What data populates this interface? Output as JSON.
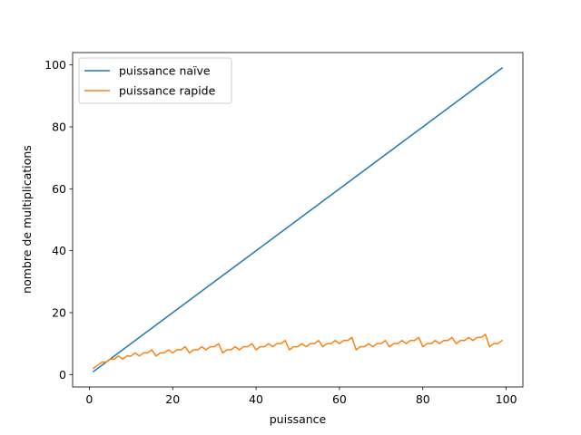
{
  "chart_data": {
    "type": "line",
    "title": "",
    "xlabel": "puissance",
    "ylabel": "nombre de multiplications",
    "xlim": [
      -4,
      104
    ],
    "ylim": [
      -4,
      104
    ],
    "x_ticks": [
      0,
      20,
      40,
      60,
      80,
      100
    ],
    "y_ticks": [
      0,
      20,
      40,
      60,
      80,
      100
    ],
    "grid": false,
    "legend_position": "top-left",
    "series": [
      {
        "name": "puissance naïve",
        "color": "#1f77b4",
        "x": [
          1,
          99
        ],
        "y": [
          1,
          99
        ]
      },
      {
        "name": "puissance rapide",
        "color": "#ff7f0e",
        "x": [
          1,
          2,
          3,
          4,
          5,
          6,
          7,
          8,
          9,
          10,
          11,
          12,
          13,
          14,
          15,
          16,
          17,
          18,
          19,
          20,
          21,
          22,
          23,
          24,
          25,
          26,
          27,
          28,
          29,
          30,
          31,
          32,
          33,
          34,
          35,
          36,
          37,
          38,
          39,
          40,
          41,
          42,
          43,
          44,
          45,
          46,
          47,
          48,
          49,
          50,
          51,
          52,
          53,
          54,
          55,
          56,
          57,
          58,
          59,
          60,
          61,
          62,
          63,
          64,
          65,
          66,
          67,
          68,
          69,
          70,
          71,
          72,
          73,
          74,
          75,
          76,
          77,
          78,
          79,
          80,
          81,
          82,
          83,
          84,
          85,
          86,
          87,
          88,
          89,
          90,
          91,
          92,
          93,
          94,
          95,
          96,
          97,
          98,
          99
        ],
        "y": [
          2,
          3,
          4,
          4,
          5,
          5,
          6,
          5,
          6,
          6,
          7,
          6,
          7,
          7,
          8,
          6,
          7,
          7,
          8,
          7,
          8,
          8,
          9,
          7,
          8,
          8,
          9,
          8,
          9,
          9,
          10,
          7,
          8,
          8,
          9,
          8,
          9,
          9,
          10,
          8,
          9,
          9,
          10,
          9,
          10,
          10,
          11,
          8,
          9,
          9,
          10,
          9,
          10,
          10,
          11,
          9,
          10,
          10,
          11,
          10,
          11,
          11,
          12,
          8,
          9,
          9,
          10,
          9,
          10,
          10,
          11,
          9,
          10,
          10,
          11,
          10,
          11,
          11,
          12,
          9,
          10,
          10,
          11,
          10,
          11,
          11,
          12,
          10,
          11,
          11,
          12,
          11,
          12,
          12,
          13,
          9,
          10,
          10,
          11
        ]
      }
    ]
  }
}
